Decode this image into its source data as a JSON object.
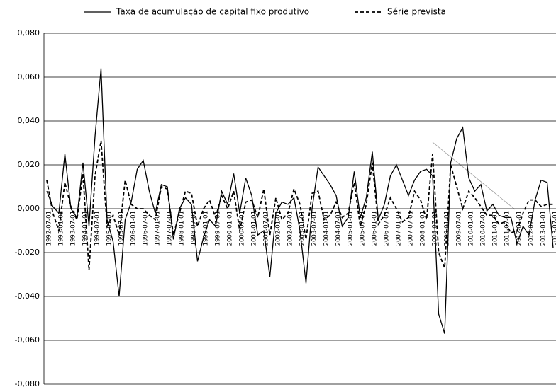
{
  "chart_data": {
    "type": "line",
    "categories": [
      "1992-07-01",
      null,
      "1993-01-01",
      null,
      "1993-07-01",
      null,
      "1994-01-01",
      null,
      "1994-07-01",
      null,
      "1995-01-01",
      null,
      "1995-07-01",
      null,
      "1996-01-01",
      null,
      "1996-07-01",
      null,
      "1997-01-01",
      null,
      "1997-07-01",
      null,
      "1998-01-01",
      null,
      "1998-07-01",
      null,
      "1999-01-01",
      null,
      "1999-07-01",
      null,
      "2000-01-01",
      null,
      "2000-07-01",
      null,
      "2001-01-01",
      null,
      "2001-07-01",
      null,
      "2002-01-01",
      null,
      "2002-07-01",
      null,
      "2003-01-01",
      null,
      "2003-07-01",
      null,
      "2004-01-01",
      null,
      "2004-07-01",
      null,
      "2005-01-01",
      null,
      "2005-07-01",
      null,
      "2006-01-01",
      null,
      "2006-07-01",
      null,
      "2007-01-01",
      null,
      "2007-07-01",
      null,
      "2008-01-01",
      null,
      "2008-07-01",
      null,
      "2009-01-01",
      null,
      "2009-07-01",
      null,
      "2010-01-01",
      null,
      "2010-07-01",
      null,
      "2011-01-01",
      null,
      "2011-07-01",
      null,
      "2012-01-01",
      null,
      "2012-07-01",
      null,
      "2013-01-01",
      null,
      "2013-07-01"
    ],
    "series": [
      {
        "name": "Taxa de acumulação de capital fixo produtivo",
        "color": "#000000",
        "dash": false,
        "values": [
          0.008,
          0.001,
          -0.002,
          0.025,
          0.0,
          -0.004,
          0.021,
          -0.008,
          0.033,
          0.064,
          -0.005,
          -0.015,
          -0.04,
          -0.005,
          0.003,
          0.018,
          0.022,
          0.008,
          -0.002,
          0.011,
          0.01,
          -0.014,
          0.0,
          0.005,
          0.002,
          -0.024,
          -0.013,
          -0.005,
          -0.008,
          0.008,
          0.002,
          0.016,
          -0.002,
          0.014,
          0.006,
          -0.012,
          -0.01,
          -0.031,
          -0.002,
          0.003,
          0.002,
          0.005,
          -0.01,
          -0.034,
          0.0,
          0.019,
          0.015,
          0.011,
          0.006,
          -0.008,
          -0.004,
          0.017,
          -0.004,
          0.005,
          0.026,
          -0.005,
          0.002,
          0.015,
          0.02,
          0.013,
          0.006,
          0.013,
          0.017,
          0.018,
          0.015,
          -0.048,
          -0.057,
          0.021,
          0.032,
          0.037,
          0.014,
          0.008,
          0.011,
          -0.001,
          0.002,
          -0.003,
          -0.004,
          -0.004,
          -0.016,
          -0.008,
          -0.012,
          0.004,
          0.013,
          0.012,
          -0.018
        ]
      },
      {
        "name": "Série prevista",
        "color": "#000000",
        "dash": true,
        "values": [
          0.013,
          -0.002,
          -0.01,
          0.012,
          0.001,
          -0.005,
          0.016,
          -0.028,
          0.015,
          0.031,
          -0.008,
          -0.003,
          -0.012,
          0.013,
          0.002,
          0.0,
          0.0,
          -0.003,
          -0.005,
          0.01,
          0.009,
          -0.012,
          -0.002,
          0.008,
          0.007,
          -0.008,
          0.0,
          0.004,
          -0.004,
          0.006,
          0.0,
          0.008,
          -0.01,
          0.003,
          0.004,
          -0.004,
          0.009,
          -0.012,
          0.005,
          -0.005,
          -0.002,
          0.009,
          0.002,
          -0.014,
          0.007,
          0.008,
          -0.005,
          -0.003,
          0.003,
          -0.004,
          -0.002,
          0.012,
          -0.008,
          0.002,
          0.021,
          -0.007,
          -0.003,
          0.005,
          0.0,
          -0.006,
          -0.004,
          0.008,
          0.004,
          -0.005,
          0.025,
          -0.02,
          -0.027,
          0.02,
          0.01,
          0.0,
          0.008,
          0.005,
          0.001,
          -0.003,
          -0.003,
          -0.007,
          -0.006,
          -0.011,
          -0.01,
          -0.002,
          0.004,
          0.004,
          0.001,
          0.002,
          0.002
        ]
      }
    ],
    "ylim": [
      -0.08,
      0.08
    ],
    "yticks": [
      {
        "value": -0.08,
        "label": "-0,080"
      },
      {
        "value": -0.06,
        "label": "-0,060"
      },
      {
        "value": -0.04,
        "label": "-0,040"
      },
      {
        "value": -0.02,
        "label": "-0,020"
      },
      {
        "value": 0,
        "label": "0,000"
      },
      {
        "value": 0.02,
        "label": "0,020"
      },
      {
        "value": 0.04,
        "label": "0,040"
      },
      {
        "value": 0.06,
        "label": "0,060"
      },
      {
        "value": 0.08,
        "label": "0,080"
      }
    ],
    "grid": true
  }
}
